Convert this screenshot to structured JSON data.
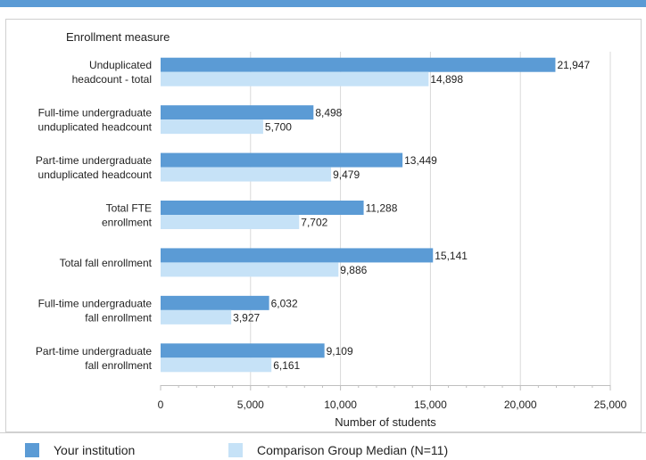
{
  "chart_data": {
    "type": "bar",
    "orientation": "horizontal",
    "category_header": "Enrollment measure",
    "categories": [
      [
        "Unduplicated",
        "headcount - total"
      ],
      [
        "Full-time undergraduate",
        "unduplicated headcount"
      ],
      [
        "Part-time undergraduate",
        "unduplicated headcount"
      ],
      [
        "Total FTE",
        "enrollment"
      ],
      [
        "Total fall enrollment"
      ],
      [
        "Full-time undergraduate",
        "fall enrollment"
      ],
      [
        "Part-time undergraduate",
        "fall enrollment"
      ]
    ],
    "series": [
      {
        "name": "Your institution",
        "color": "#5b9bd5",
        "values": [
          21947,
          8498,
          13449,
          11288,
          15141,
          6032,
          9109
        ],
        "labels": [
          "21,947",
          "8,498",
          "13,449",
          "11,288",
          "15,141",
          "6,032",
          "9,109"
        ]
      },
      {
        "name": "Comparison Group Median (N=11)",
        "color": "#c6e2f7",
        "values": [
          14898,
          5700,
          9479,
          7702,
          9886,
          3927,
          6161
        ],
        "labels": [
          "14,898",
          "5,700",
          "9,479",
          "7,702",
          "9,886",
          "3,927",
          "6,161"
        ]
      }
    ],
    "xlabel": "Number of students",
    "xlim": [
      0,
      25000
    ],
    "xticks": [
      0,
      5000,
      10000,
      15000,
      20000,
      25000
    ],
    "xtick_labels": [
      "0",
      "5,000",
      "10,000",
      "15,000",
      "20,000",
      "25,000"
    ],
    "grid": true,
    "legend_position": "bottom",
    "top_rule_color": "#5b9bd5",
    "grid_color": "#d9d9d9"
  }
}
